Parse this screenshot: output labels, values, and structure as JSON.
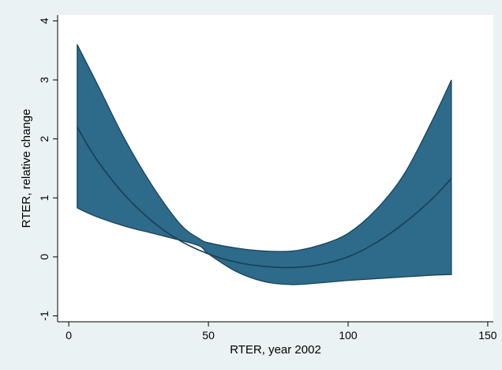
{
  "chart_data": {
    "type": "area",
    "title": "",
    "xlabel": "RTER, year 2002",
    "ylabel": "RTER, relative change",
    "xlim": [
      -4,
      152
    ],
    "ylim": [
      -1.1,
      4.1
    ],
    "xticks": [
      0,
      50,
      100,
      150
    ],
    "yticks": [
      -1,
      0,
      1,
      2,
      3,
      4
    ],
    "grid": false,
    "legend": "none",
    "colors": {
      "background": "#eaf2f3",
      "plot_area": "#ffffff",
      "band_fill": "#2e6a8a",
      "line": "#173f56",
      "axis": "#000000"
    },
    "series": [
      {
        "role": "upper_bound",
        "x": [
          3,
          10,
          20,
          30,
          40,
          47,
          50,
          60,
          70,
          80,
          90,
          100,
          110,
          120,
          130,
          137
        ],
        "values": [
          3.6,
          2.95,
          2.0,
          1.2,
          0.55,
          0.3,
          0.24,
          0.15,
          0.1,
          0.1,
          0.2,
          0.4,
          0.8,
          1.4,
          2.3,
          3.0
        ]
      },
      {
        "role": "fit",
        "x": [
          3,
          10,
          20,
          30,
          40,
          50,
          60,
          70,
          80,
          90,
          100,
          110,
          120,
          130,
          137
        ],
        "values": [
          2.2,
          1.65,
          1.05,
          0.6,
          0.27,
          0.05,
          -0.09,
          -0.16,
          -0.18,
          -0.13,
          0.0,
          0.24,
          0.57,
          0.98,
          1.33
        ]
      },
      {
        "role": "lower_bound",
        "x": [
          3,
          10,
          20,
          30,
          40,
          47,
          50,
          60,
          70,
          80,
          90,
          100,
          110,
          120,
          130,
          137
        ],
        "values": [
          0.83,
          0.68,
          0.52,
          0.4,
          0.28,
          0.18,
          0.05,
          -0.25,
          -0.42,
          -0.47,
          -0.44,
          -0.4,
          -0.37,
          -0.34,
          -0.31,
          -0.3
        ]
      }
    ]
  }
}
